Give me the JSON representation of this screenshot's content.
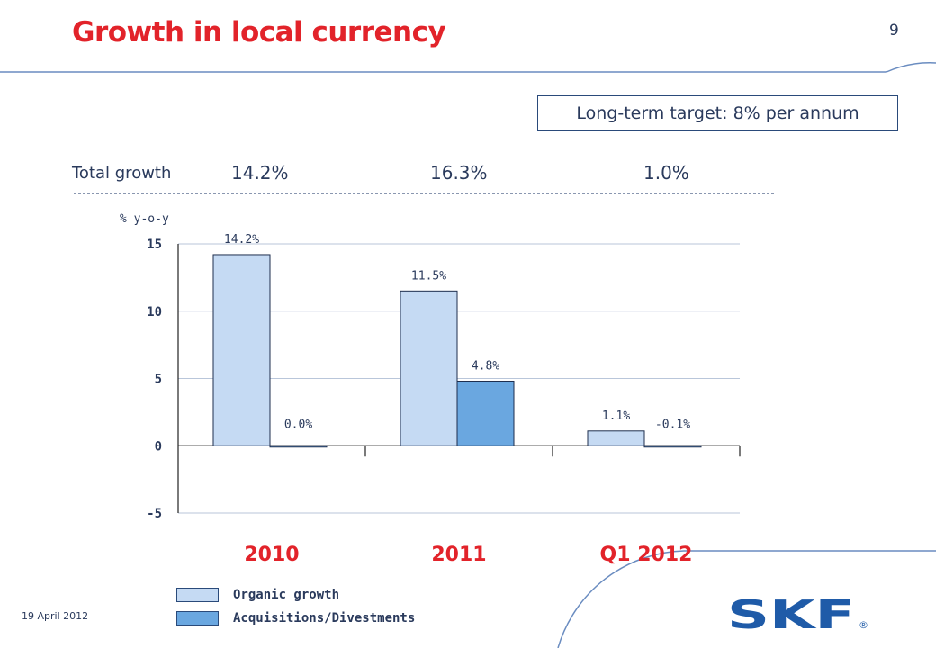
{
  "header": {
    "title": "Growth in local currency",
    "page_number": "9"
  },
  "target_box": {
    "text": "Long-term target: 8% per annum"
  },
  "total_growth": {
    "label": "Total growth",
    "values": [
      "14.2%",
      "16.3%",
      "1.0%"
    ]
  },
  "footer": {
    "date": "19 April 2012"
  },
  "logo": {
    "text": "SKF",
    "mark": "®"
  },
  "colors": {
    "title": "#e2232a",
    "organic": "#c5daf3",
    "acquisitions": "#6aa7e0",
    "text": "#2a3a5c",
    "grid": "#b9c6da",
    "logo": "#1f5ba8"
  },
  "chart_data": {
    "type": "bar",
    "categories": [
      "2010",
      "2011",
      "Q1 2012"
    ],
    "series": [
      {
        "name": "Organic growth",
        "values": [
          14.2,
          11.5,
          1.1
        ],
        "labels": [
          "14.2%",
          "11.5%",
          "1.1%"
        ],
        "color": "#c5daf3"
      },
      {
        "name": "Acquisitions/Divestments",
        "values": [
          0.0,
          4.8,
          -0.1
        ],
        "labels": [
          "0.0%",
          "4.8%",
          "-0.1%"
        ],
        "color": "#6aa7e0"
      }
    ],
    "ylabel": "% y-o-y",
    "ylim": [
      -5,
      15
    ],
    "yticks": [
      15,
      10,
      5,
      0,
      -5
    ],
    "grid": true,
    "legend": "bottom-left"
  }
}
